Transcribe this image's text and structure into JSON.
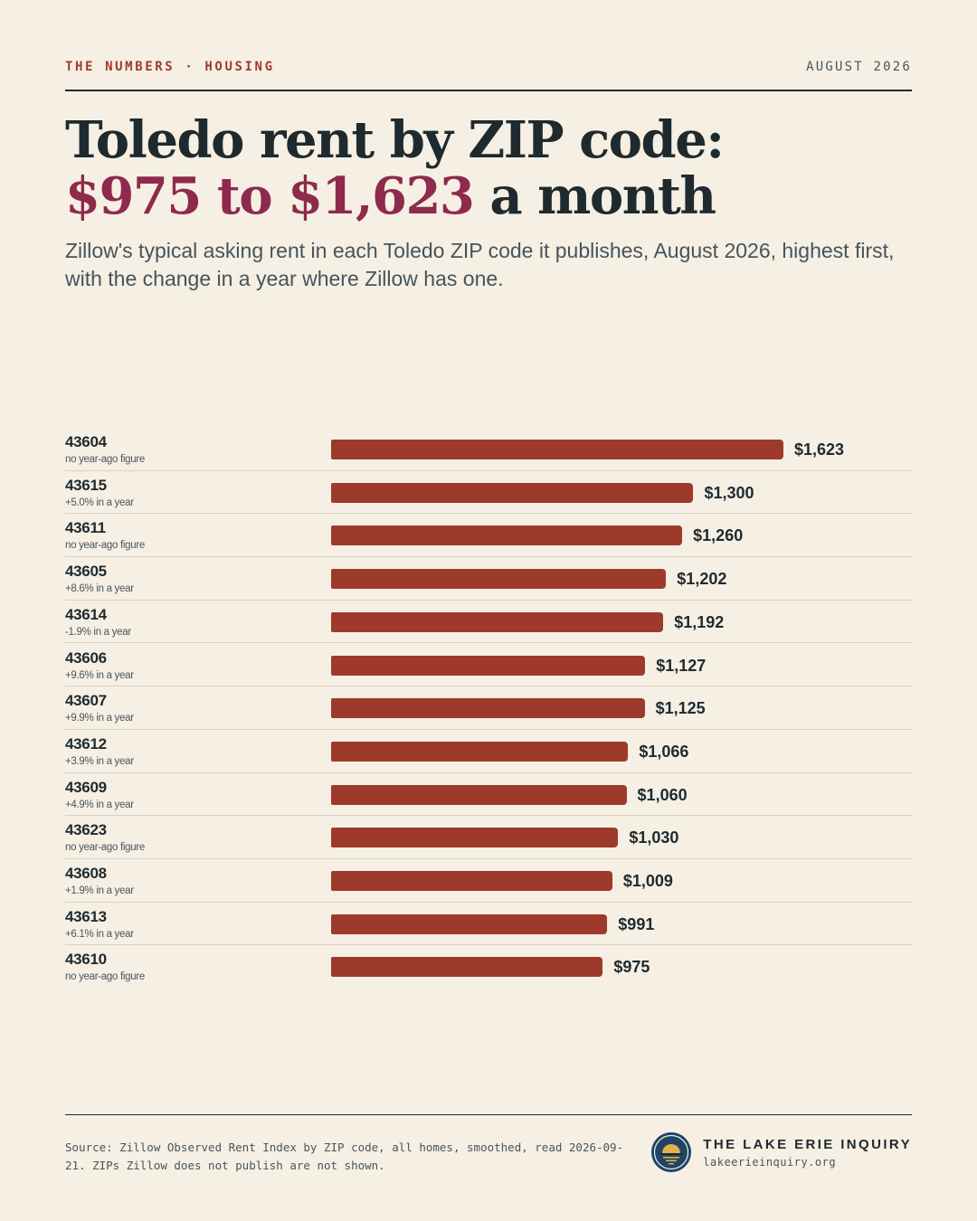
{
  "header": {
    "kicker": "THE NUMBERS · HOUSING",
    "date": "AUGUST 2026"
  },
  "title": {
    "line1": "Toledo rent by ZIP code:",
    "line2_accent": "$975 to $1,623",
    "line2_rest": " a month"
  },
  "subtitle": "Zillow's typical asking rent in each Toledo ZIP code it publishes, August 2026, highest first, with the change in a year where Zillow has one.",
  "colors": {
    "bar": "#9e3a2b",
    "accent": "#8e2a4c",
    "kicker": "#a13a2c",
    "background": "#f5efe4",
    "ink": "#1e2a2e"
  },
  "chart_data": {
    "type": "bar",
    "orientation": "horizontal",
    "categories": [
      "43604",
      "43615",
      "43611",
      "43605",
      "43614",
      "43606",
      "43607",
      "43612",
      "43609",
      "43623",
      "43608",
      "43613",
      "43610"
    ],
    "values": [
      1623,
      1300,
      1260,
      1202,
      1192,
      1127,
      1125,
      1066,
      1060,
      1030,
      1009,
      991,
      975
    ],
    "value_labels": [
      "$1,623",
      "$1,300",
      "$1,260",
      "$1,202",
      "$1,192",
      "$1,127",
      "$1,125",
      "$1,066",
      "$1,060",
      "$1,030",
      "$1,009",
      "$991",
      "$975"
    ],
    "change_labels": [
      "no year-ago figure",
      "+5.0% in a year",
      "no year-ago figure",
      "+8.6% in a year",
      "-1.9% in a year",
      "+9.6% in a year",
      "+9.9% in a year",
      "+3.9% in a year",
      "+4.9% in a year",
      "no year-ago figure",
      "+1.9% in a year",
      "+6.1% in a year",
      "no year-ago figure"
    ],
    "xlim": [
      0,
      1623
    ],
    "grid": false,
    "legend": "none"
  },
  "footer": {
    "source": "Source: Zillow Observed Rent Index by ZIP code, all homes, smoothed, read 2026-09-21. ZIPs Zillow does not publish are not shown.",
    "brand_name": "THE LAKE ERIE INQUIRY",
    "brand_url": "lakeerieinquiry.org",
    "logo_icon": "sunset-over-lake-seal-icon"
  }
}
